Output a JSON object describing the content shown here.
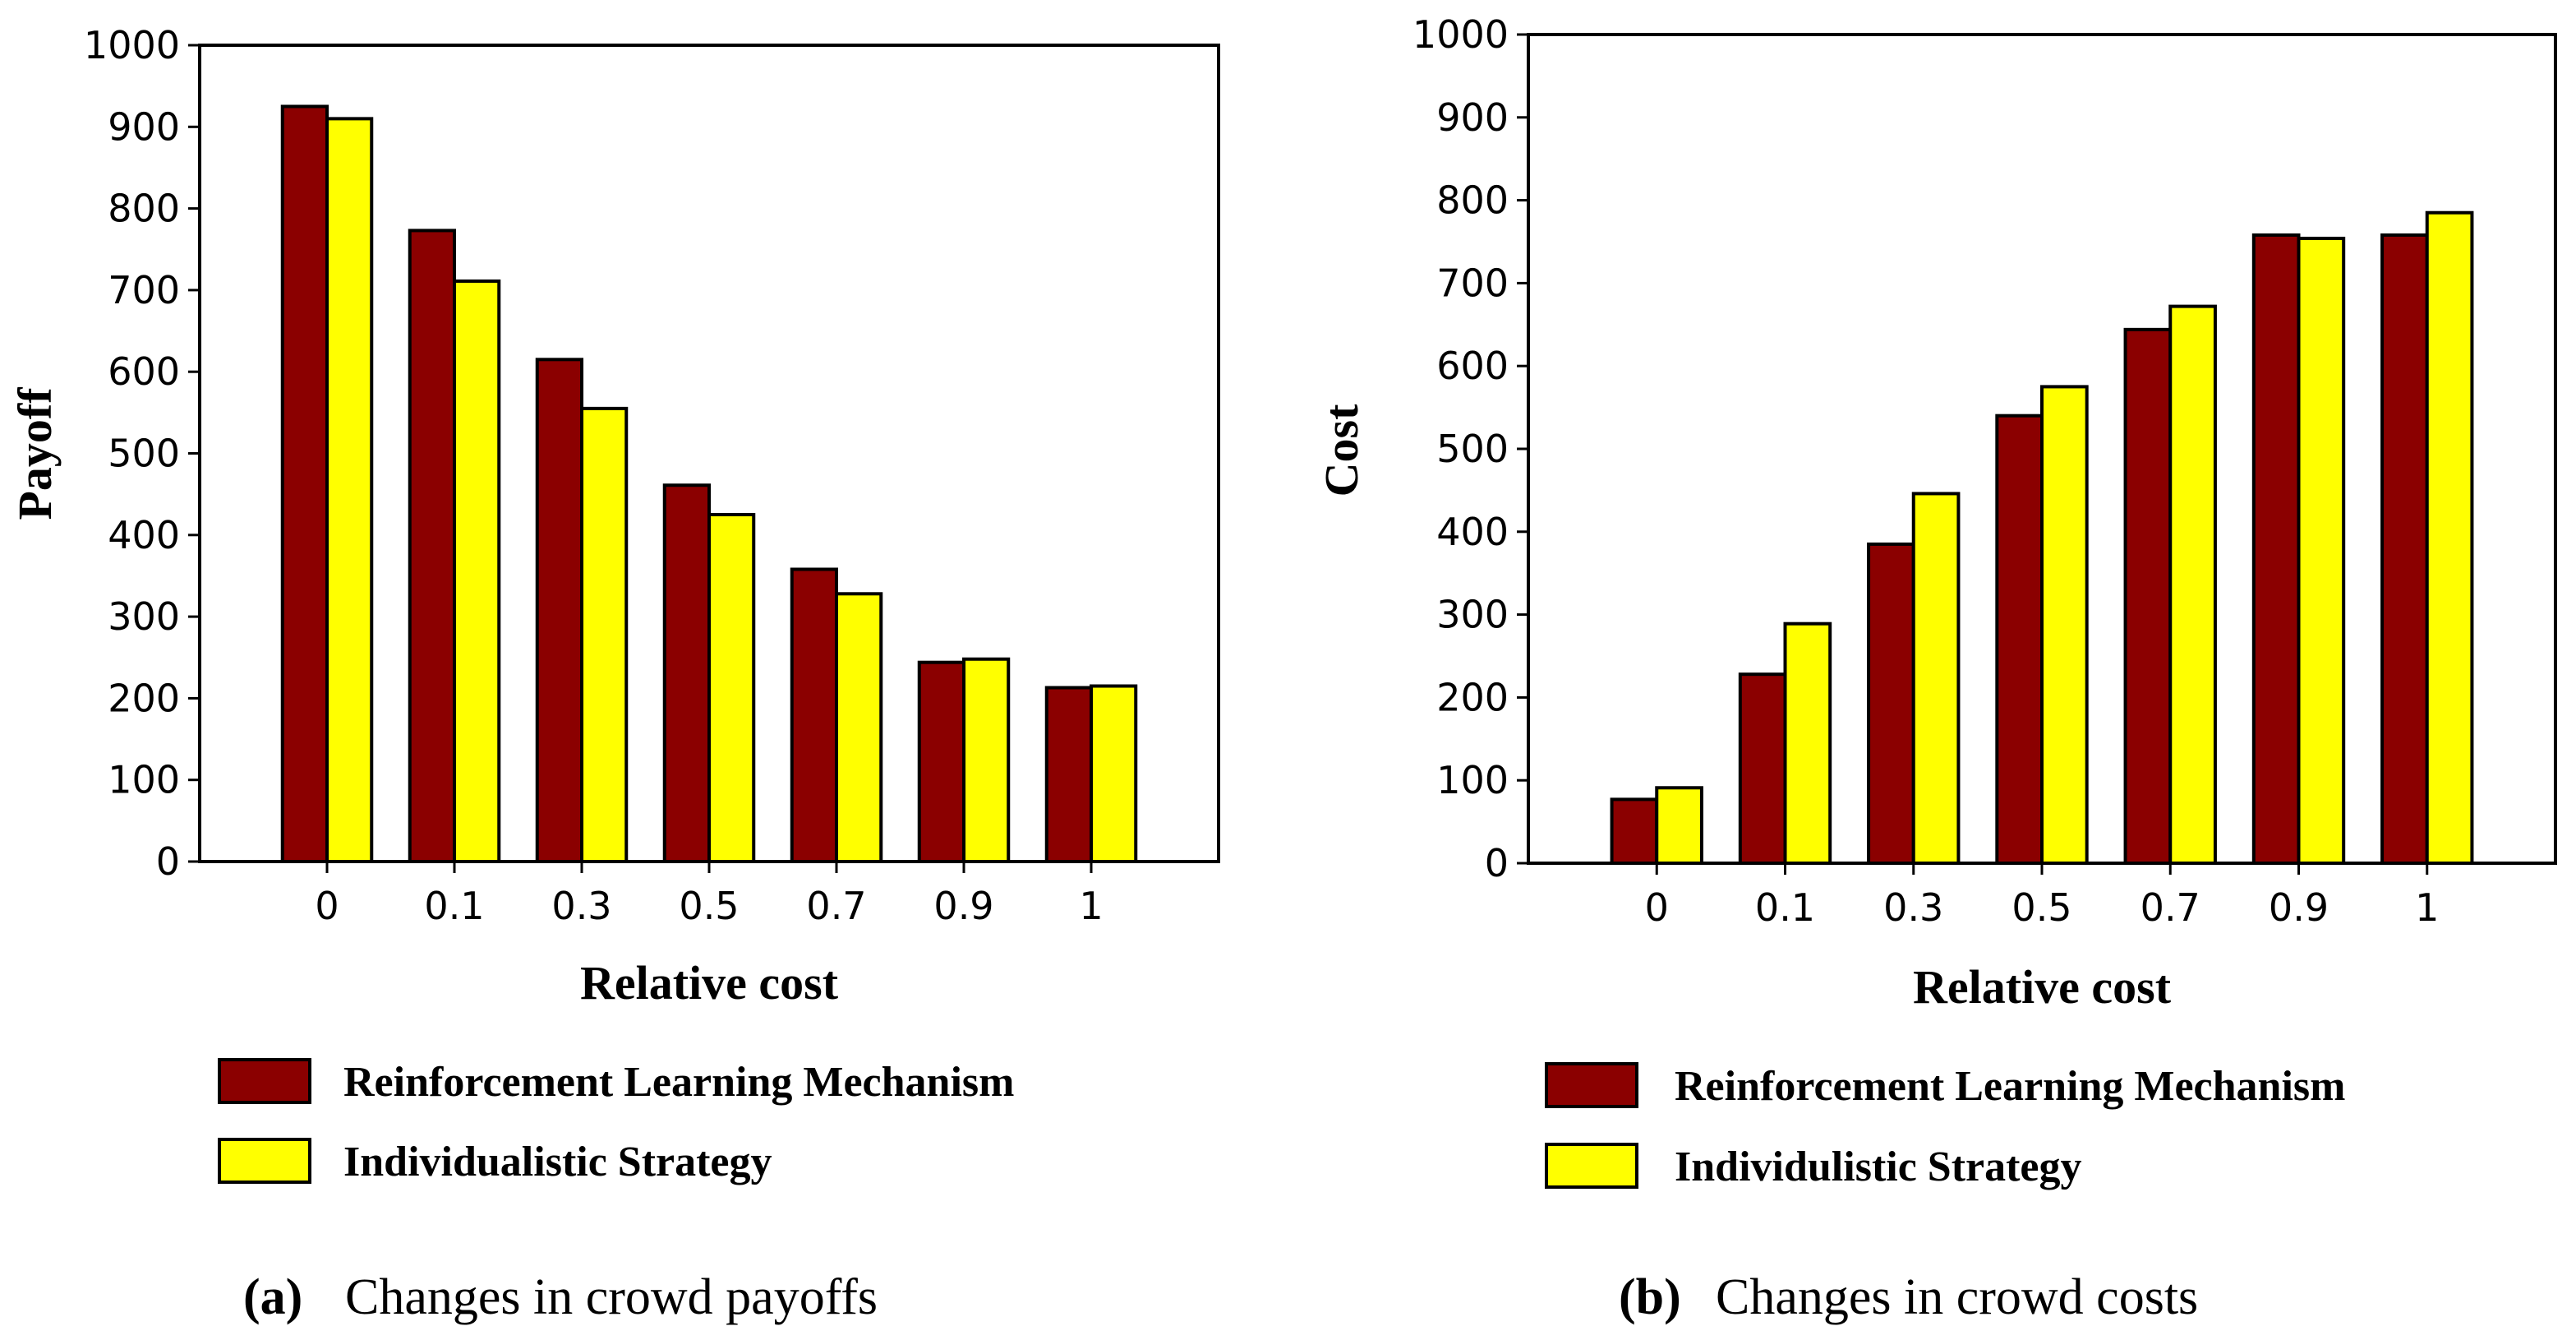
{
  "chart_data": [
    {
      "type": "bar",
      "categories": [
        "0",
        "0.1",
        "0.3",
        "0.5",
        "0.7",
        "0.9",
        "1"
      ],
      "series": [
        {
          "name": "Reinforcement Learning Mechanism",
          "values": [
            925,
            773,
            615,
            461,
            358,
            244,
            213
          ],
          "color": "#8b0000"
        },
        {
          "name": "Individualistic Strategy",
          "values": [
            910,
            711,
            555,
            425,
            328,
            248,
            215
          ],
          "color": "#ffff00"
        }
      ],
      "title": "",
      "xlabel": "Relative cost",
      "ylabel": "Payoff",
      "ylim": [
        0,
        1000
      ],
      "yticks": [
        "0",
        "100",
        "200",
        "300",
        "400",
        "500",
        "600",
        "700",
        "800",
        "900",
        "1000"
      ],
      "caption_letter": "(a)",
      "caption": "Changes in crowd payoffs"
    },
    {
      "type": "bar",
      "categories": [
        "0",
        "0.1",
        "0.3",
        "0.5",
        "0.7",
        "0.9",
        "1"
      ],
      "series": [
        {
          "name": "Reinforcement Learning Mechanism",
          "values": [
            77,
            228,
            385,
            540,
            644,
            758,
            758
          ],
          "color": "#8b0000"
        },
        {
          "name": "Individulistic Strategy",
          "values": [
            91,
            289,
            446,
            575,
            672,
            754,
            785
          ],
          "color": "#ffff00"
        }
      ],
      "title": "",
      "xlabel": "Relative cost",
      "ylabel": "Cost",
      "ylim": [
        0,
        1000
      ],
      "yticks": [
        "0",
        "100",
        "200",
        "300",
        "400",
        "500",
        "600",
        "700",
        "800",
        "900",
        "1000"
      ],
      "caption_letter": "(b)",
      "caption": "Changes in crowd costs"
    }
  ]
}
